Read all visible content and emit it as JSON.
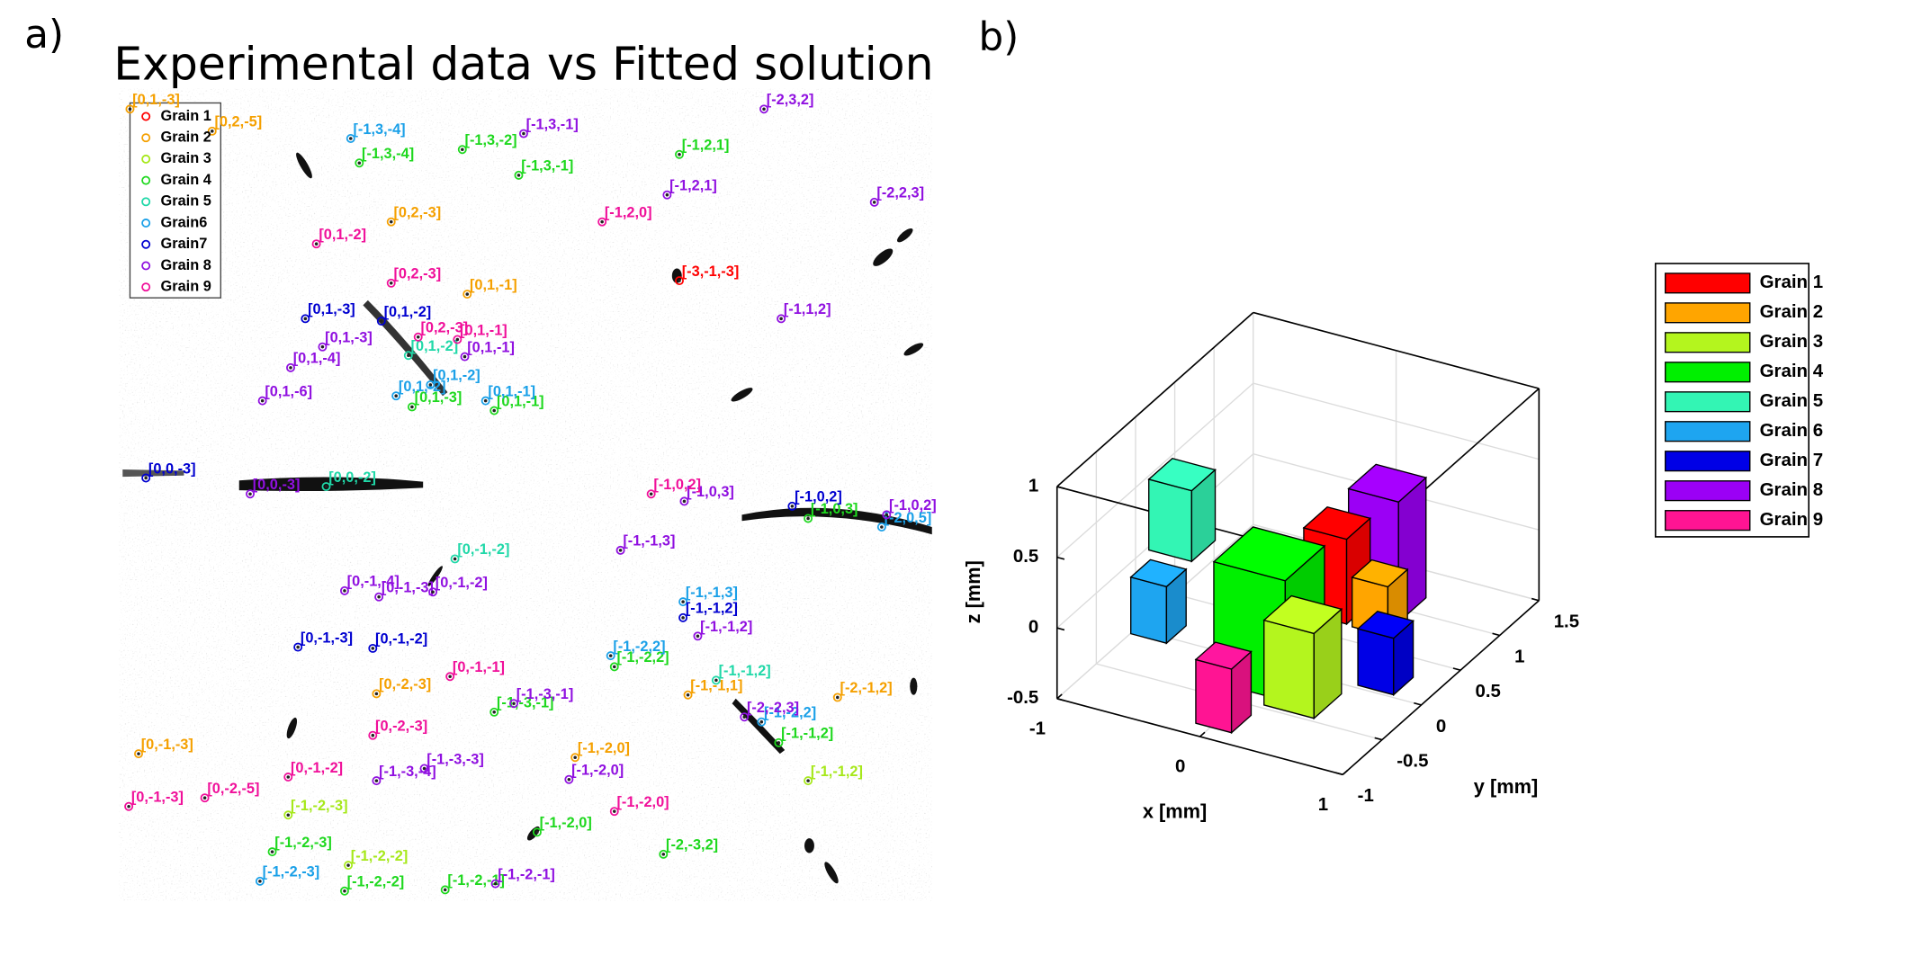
{
  "panel_a": "a)",
  "panel_b": "b)",
  "pattern": {
    "title": "Experimental data vs Fitted solution",
    "grains": [
      {
        "name": "Grain 1",
        "color": "#ff0000",
        "spots": [
          "[-3,-1,-3]"
        ]
      },
      {
        "name": "Grain 2",
        "color": "#f5a000",
        "spots": [
          "[0,1,-3]",
          "[0,2,-5]",
          "[0,2,-3]",
          "[0,1,-1]",
          "[0,-2,-3]",
          "[-1,-1,1]",
          "[-2,-1,2]",
          "[0,-1,-3]",
          "[-1,-2,0]"
        ]
      },
      {
        "name": "Grain 3",
        "color": "#a6e81a",
        "spots": [
          "[-1,-1,2]",
          "[-1,-2,-3]",
          "[-1,-2,-2]"
        ]
      },
      {
        "name": "Grain 4",
        "color": "#1ed81e",
        "spots": [
          "[-1,3,-4]",
          "[-1,3,-2]",
          "[-1,3,-1]",
          "[-1,2,1]",
          "[0,1,-1]",
          "[0,1,-3]",
          "[-1,0,3]",
          "[-1,-2,2]",
          "[-1,-3,-1]",
          "[-1,-1,2]",
          "[-1,-2,0]",
          "[-1,-2,-3]",
          "[-2,-3,2]",
          "[-1,-2,-2]",
          "[-1,-2,-1]"
        ]
      },
      {
        "name": "Grain 5",
        "color": "#20d8a8",
        "spots": [
          "[0,1,-2]",
          "[0,0,-2]",
          "[0,-1,-2]",
          "[-1,-1,2]"
        ]
      },
      {
        "name": "Grain6",
        "color": "#1aa0e8",
        "spots": [
          "[-1,3,-4]",
          "[0,1,-2]",
          "[0,1,-2]",
          "[0,1,-1]",
          "[-2,0,5]",
          "[-1,-1,3]",
          "[-1,-2,2]",
          "[-1,-2,2]",
          "[-1,-2,-3]"
        ]
      },
      {
        "name": "Grain7",
        "color": "#0000d0",
        "spots": [
          "[0,1,-3]",
          "[0,1,-2]",
          "[0,0,-3]",
          "[-1,0,2]",
          "[-1,-1,2]",
          "[0,-1,-3]",
          "[0,-1,-2]"
        ]
      },
      {
        "name": "Grain 8",
        "color": "#9010e0",
        "spots": [
          "[-1,3,-1]",
          "[-2,3,2]",
          "[-1,2,1]",
          "[-2,2,3]",
          "[-1,1,2]",
          "[0,1,-3]",
          "[0,1,-1]",
          "[0,1,-4]",
          "[0,1,-6]",
          "[0,0,-3]",
          "[-1,0,3]",
          "[-1,0,2]",
          "[-1,-1,3]",
          "[0,-1,-4]",
          "[0,-1,-3]",
          "[0,-1,-2]",
          "[-1,-1,2]",
          "[-1,-3,-1]",
          "[-2,-2,3]",
          "[-1,-3,-3]",
          "[-1,-3,-4]",
          "[-1,-2,0]",
          "[-1,-2,-1]"
        ]
      },
      {
        "name": "Grain 9",
        "color": "#f0109a",
        "spots": [
          "[-1,2,0]",
          "[0,1,-2]",
          "[0,2,-3]",
          "[0,1,-1]",
          "[0,2,-3]",
          "[-1,0,2]",
          "[0,-1,-1]",
          "[0,-2,-3]",
          "[0,-1,-2]",
          "[0,-1,-3]",
          "[0,-2,-5]",
          "[-1,-2,0]"
        ]
      }
    ]
  },
  "chart_data": {
    "type": "bar3d",
    "xlabel": "x [mm]",
    "ylabel": "y [mm]",
    "zlabel": "z [mm]",
    "xlim": [
      -1,
      1
    ],
    "ylim": [
      -1,
      1.5
    ],
    "zlim": [
      -0.5,
      1
    ],
    "xticks": [
      -1,
      0,
      1
    ],
    "yticks": [
      -1,
      -0.5,
      0,
      0.5,
      1,
      1.5
    ],
    "zticks": [
      -0.5,
      0,
      0.5,
      1
    ],
    "grid": true,
    "series": [
      {
        "name": "Grain 1",
        "color": "#ff0000",
        "x": 0.3,
        "y": 0.2,
        "z": 0.2,
        "size": [
          0.3,
          0.3,
          0.6
        ]
      },
      {
        "name": "Grain 2",
        "color": "#ffa500",
        "x": 0.6,
        "y": 0.2,
        "z": 0.05,
        "size": [
          0.25,
          0.25,
          0.35
        ]
      },
      {
        "name": "Grain 3",
        "color": "#b4f51e",
        "x": 0.5,
        "y": -0.6,
        "z": 0,
        "size": [
          0.35,
          0.35,
          0.6
        ]
      },
      {
        "name": "Grain 4",
        "color": "#00f000",
        "x": 0.1,
        "y": -0.3,
        "z": 0.05,
        "size": [
          0.5,
          0.5,
          0.85
        ]
      },
      {
        "name": "Grain 5",
        "color": "#33f5b4",
        "x": -0.4,
        "y": -0.5,
        "z": 0.75,
        "size": [
          0.3,
          0.3,
          0.5
        ]
      },
      {
        "name": "Grain 6",
        "color": "#1ea5f0",
        "x": -0.4,
        "y": -0.8,
        "z": 0.25,
        "size": [
          0.25,
          0.25,
          0.4
        ]
      },
      {
        "name": "Grain 7",
        "color": "#0000e6",
        "x": 0.75,
        "y": 0,
        "z": -0.2,
        "size": [
          0.25,
          0.25,
          0.4
        ]
      },
      {
        "name": "Grain 8",
        "color": "#9b00f5",
        "x": 0.35,
        "y": 0.75,
        "z": 0.1,
        "size": [
          0.35,
          0.35,
          0.85
        ]
      },
      {
        "name": "Grain 9",
        "color": "#ff1493",
        "x": 0,
        "y": -0.7,
        "z": -0.3,
        "size": [
          0.25,
          0.25,
          0.45
        ]
      }
    ]
  }
}
